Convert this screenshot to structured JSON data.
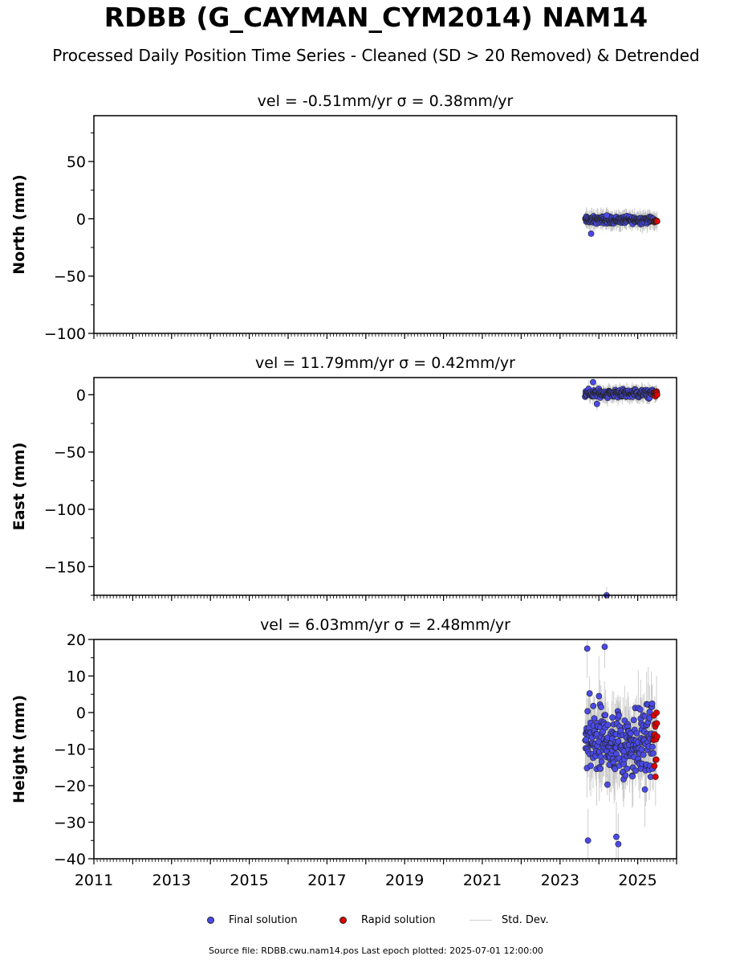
{
  "title": "RDBB (G_CAYMAN_CYM2014) NAM14",
  "subtitle": "Processed Daily Position Time Series - Cleaned (SD > 20 Removed) & Detrended",
  "chart_data": {
    "type": "scatter",
    "x_range": [
      2011,
      2026
    ],
    "x_ticks": [
      "2011",
      "2013",
      "2015",
      "2017",
      "2019",
      "2021",
      "2023",
      "2025"
    ],
    "x_tick_values": [
      2011,
      2013,
      2015,
      2017,
      2019,
      2021,
      2023,
      2025
    ],
    "colors": {
      "final": "#4a4ae8",
      "rapid": "#e00000",
      "std": "#bbbbbb"
    },
    "panels": [
      {
        "ylabel": "North (mm)",
        "title": "vel = -0.51mm/yr   σ = 0.38mm/yr",
        "ylim": [
          -100,
          90
        ],
        "yticks": [
          -100,
          -50,
          0,
          50
        ],
        "ytick_labels": [
          "−100",
          "−50",
          "0",
          "50"
        ],
        "final": {
          "t_start": 2023.65,
          "t_end": 2025.4,
          "center": -1,
          "spread": 2.5
        },
        "rapid": {
          "t_start": 2025.41,
          "t_end": 2025.5,
          "center": -2,
          "spread": 1
        },
        "outliers": [
          [
            2023.8,
            -13
          ],
          [
            2024.2,
            3
          ]
        ],
        "std_range": 12
      },
      {
        "ylabel": "East (mm)",
        "title": "vel = 11.79mm/yr   σ = 0.42mm/yr",
        "ylim": [
          -175,
          15
        ],
        "yticks": [
          -150,
          -100,
          -50,
          0
        ],
        "ytick_labels": [
          "−150",
          "−100",
          "−50",
          "0"
        ],
        "final": {
          "t_start": 2023.65,
          "t_end": 2025.4,
          "center": 1,
          "spread": 3
        },
        "rapid": {
          "t_start": 2025.41,
          "t_end": 2025.5,
          "center": 1,
          "spread": 2
        },
        "outliers": [
          [
            2023.85,
            11
          ],
          [
            2023.95,
            -8
          ],
          [
            2024.2,
            -175
          ]
        ],
        "std_range": 10
      },
      {
        "ylabel": "Height (mm)",
        "title": "vel = 6.03mm/yr   σ = 2.48mm/yr",
        "ylim": [
          -40,
          20
        ],
        "yticks": [
          -40,
          -30,
          -20,
          -10,
          0,
          10,
          20
        ],
        "ytick_labels": [
          "−40",
          "−30",
          "−20",
          "−10",
          "0",
          "10",
          "20"
        ],
        "final": {
          "t_start": 2023.65,
          "t_end": 2025.4,
          "center": -8,
          "spread": 9
        },
        "rapid": {
          "t_start": 2025.41,
          "t_end": 2025.5,
          "center": -8,
          "spread": 7
        },
        "outliers": [
          [
            2023.7,
            17.5
          ],
          [
            2024.15,
            18
          ],
          [
            2023.72,
            -35
          ],
          [
            2024.5,
            -36
          ],
          [
            2024.45,
            -34
          ]
        ],
        "std_range": 14
      }
    ]
  },
  "legend": {
    "final_label": "Final solution",
    "rapid_label": "Rapid solution",
    "std_label": "Std. Dev."
  },
  "footer": "Source file: RDBB.cwu.nam14.pos  Last epoch plotted: 2025-07-01 12:00:00"
}
